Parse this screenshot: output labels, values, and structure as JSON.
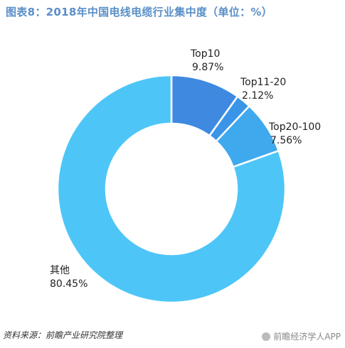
{
  "title": "图表8：2018年中国电线电缆行业集中度（单位：%）",
  "source": "资料来源：前瞻产业研究院整理",
  "watermark": "前瞻经济学人APP",
  "chart_data": {
    "type": "pie",
    "variant": "donut",
    "slices": [
      {
        "label": "Top10",
        "value": 9.87,
        "value_text": "9.87%",
        "color": "#3f8ae0"
      },
      {
        "label": "Top11-20",
        "value": 2.12,
        "value_text": "2.12%",
        "color": "#3a95e8"
      },
      {
        "label": "Top20-100",
        "value": 7.56,
        "value_text": "7.56%",
        "color": "#3fa9ee"
      },
      {
        "label": "其他",
        "value": 80.45,
        "value_text": "80.45%",
        "color": "#4dc6f7"
      }
    ]
  }
}
